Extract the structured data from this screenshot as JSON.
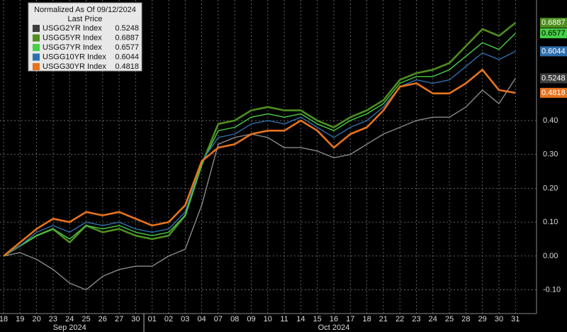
{
  "chart_data": {
    "type": "line",
    "legend_title": "Normalized As Of 09/12/2024",
    "legend_subtitle": "Last Price",
    "legend": "upper left",
    "grid": true,
    "categories": [
      "18",
      "19",
      "20",
      "23",
      "24",
      "25",
      "26",
      "27",
      "30",
      "01",
      "02",
      "03",
      "04",
      "07",
      "08",
      "09",
      "10",
      "11",
      "14",
      "15",
      "16",
      "17",
      "18",
      "21",
      "22",
      "23",
      "24",
      "25",
      "28",
      "29",
      "30",
      "31"
    ],
    "x_groups": [
      "Sep 2024",
      "Oct 2024"
    ],
    "ylim": [
      -0.17,
      0.756
    ],
    "yticks": [
      {
        "value": -0.1,
        "label": "-0.10"
      },
      {
        "value": 0,
        "label": "0.00"
      },
      {
        "value": 0.1,
        "label": "0.10"
      },
      {
        "value": 0.2,
        "label": "0.20"
      },
      {
        "value": 0.3,
        "label": "0.30"
      },
      {
        "value": 0.4,
        "label": "0.40"
      }
    ],
    "series": [
      {
        "name": "USGG2YR Index",
        "color": "#8a8a8a",
        "values": [
          0.0,
          0.01,
          -0.01,
          -0.04,
          -0.08,
          -0.1,
          -0.06,
          -0.04,
          -0.03,
          -0.03,
          0.0,
          0.02,
          0.15,
          0.33,
          0.35,
          0.36,
          0.35,
          0.32,
          0.32,
          0.31,
          0.29,
          0.3,
          0.33,
          0.36,
          0.38,
          0.4,
          0.41,
          0.41,
          0.44,
          0.49,
          0.45,
          0.5248
        ]
      },
      {
        "name": "USGG5YR Index",
        "color": "#4e8f1e",
        "values": [
          0.0,
          0.03,
          0.06,
          0.08,
          0.04,
          0.09,
          0.07,
          0.08,
          0.06,
          0.05,
          0.06,
          0.12,
          0.27,
          0.39,
          0.4,
          0.43,
          0.44,
          0.43,
          0.43,
          0.4,
          0.38,
          0.41,
          0.43,
          0.46,
          0.52,
          0.54,
          0.55,
          0.57,
          0.62,
          0.67,
          0.65,
          0.6887
        ]
      },
      {
        "name": "USGG7YR Index",
        "color": "#46d046",
        "values": [
          0.0,
          0.03,
          0.06,
          0.08,
          0.05,
          0.09,
          0.08,
          0.09,
          0.07,
          0.06,
          0.07,
          0.12,
          0.27,
          0.37,
          0.38,
          0.41,
          0.42,
          0.41,
          0.42,
          0.39,
          0.37,
          0.4,
          0.42,
          0.45,
          0.51,
          0.53,
          0.53,
          0.55,
          0.59,
          0.63,
          0.61,
          0.6577
        ]
      },
      {
        "name": "USGG10YR Index",
        "color": "#2f6fae",
        "values": [
          0.0,
          0.03,
          0.07,
          0.09,
          0.07,
          0.1,
          0.09,
          0.1,
          0.08,
          0.07,
          0.08,
          0.13,
          0.28,
          0.35,
          0.36,
          0.39,
          0.4,
          0.39,
          0.41,
          0.38,
          0.35,
          0.38,
          0.4,
          0.44,
          0.5,
          0.52,
          0.51,
          0.52,
          0.56,
          0.6,
          0.58,
          0.6044
        ]
      },
      {
        "name": "USGG30YR Index",
        "color": "#e8731c",
        "values": [
          0.0,
          0.04,
          0.08,
          0.11,
          0.1,
          0.13,
          0.12,
          0.13,
          0.11,
          0.09,
          0.1,
          0.15,
          0.28,
          0.32,
          0.33,
          0.36,
          0.37,
          0.37,
          0.4,
          0.37,
          0.32,
          0.36,
          0.38,
          0.43,
          0.5,
          0.51,
          0.48,
          0.48,
          0.51,
          0.55,
          0.49,
          0.4818
        ]
      }
    ]
  }
}
